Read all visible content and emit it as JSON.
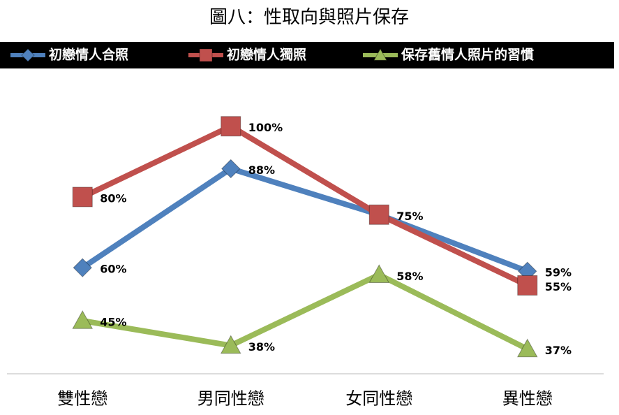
{
  "chart_data": {
    "type": "line",
    "title": "圖八：性取向與照片保存",
    "categories": [
      "雙性戀",
      "男同性戀",
      "女同性戀",
      "異性戀"
    ],
    "series": [
      {
        "name": "初戀情人合照",
        "color": "#4f81bd",
        "marker": "diamond",
        "values": [
          60,
          88,
          75,
          59
        ],
        "value_labels": [
          "60%",
          "88%",
          null,
          "59%"
        ]
      },
      {
        "name": "初戀情人獨照",
        "color": "#c0504d",
        "marker": "square",
        "values": [
          80,
          100,
          75,
          55
        ],
        "value_labels": [
          "80%",
          "100%",
          "75%",
          "55%"
        ]
      },
      {
        "name": "保存舊情人照片的習慣",
        "color": "#9bbb59",
        "marker": "triangle",
        "values": [
          45,
          38,
          58,
          37
        ],
        "value_labels": [
          "45%",
          "38%",
          "58%",
          "37%"
        ]
      }
    ],
    "ylim": [
      30,
      112
    ],
    "legend": "top",
    "grid": false
  }
}
